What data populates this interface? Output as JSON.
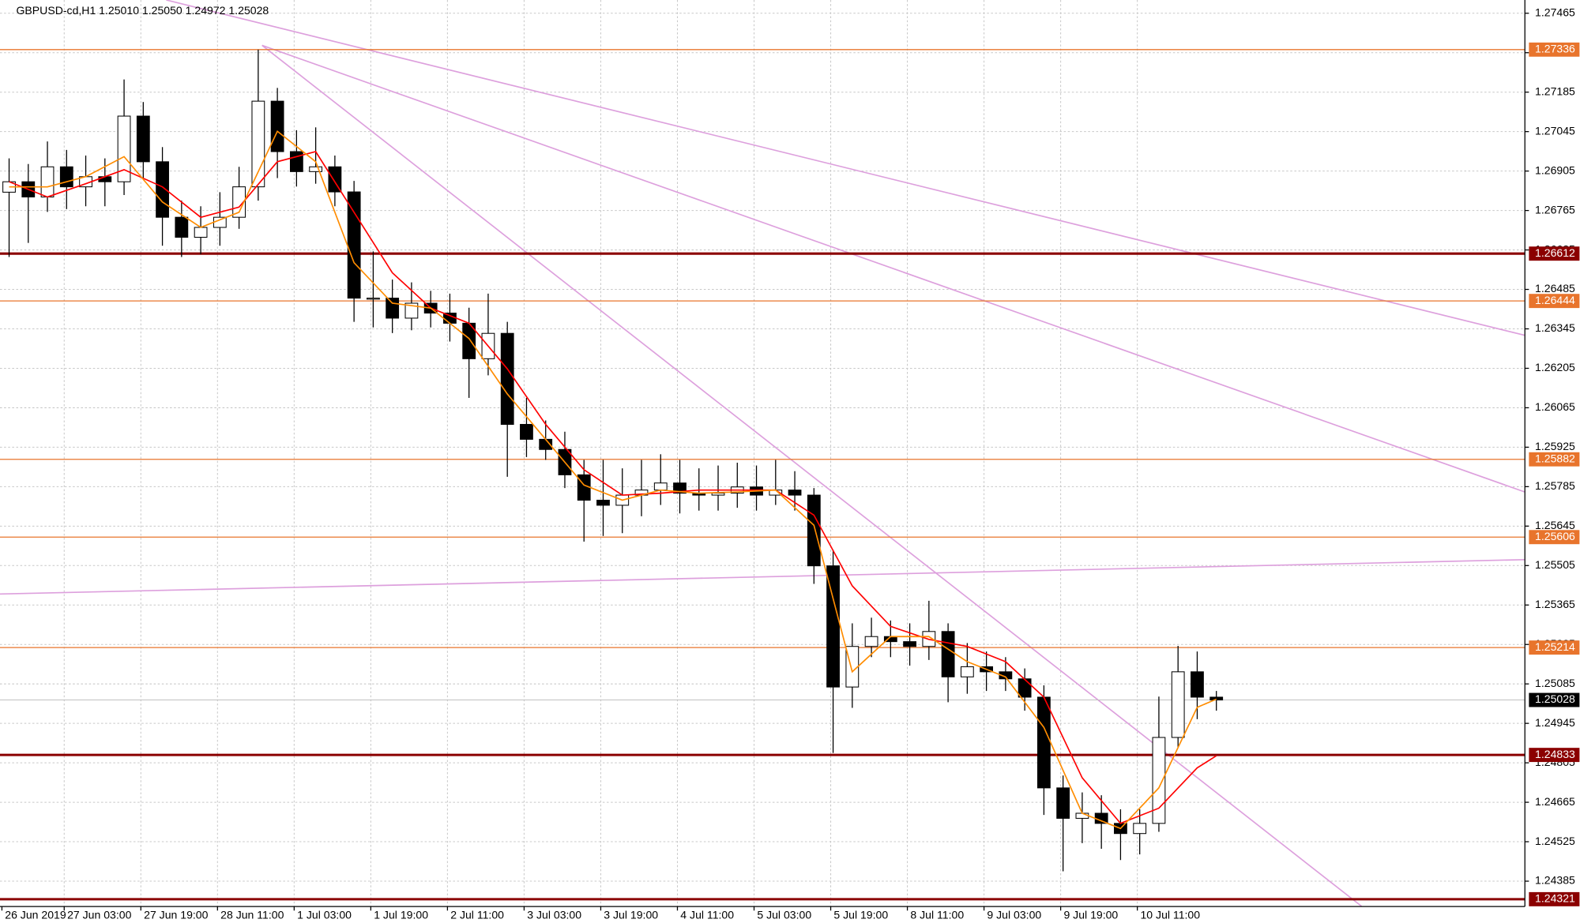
{
  "chart_data": {
    "type": "candlestick",
    "title": "GBPUSD-cd,H1  1.25010 1.25050 1.24972 1.25028",
    "x": [
      1.5,
      5.5,
      9.5,
      13.5,
      17.5,
      21.5,
      25.5,
      29.5,
      33.5,
      37.5,
      41.5,
      45.5,
      49.5,
      53.5,
      57.5,
      61.5,
      65.5,
      69.5,
      73.5,
      77.5,
      81.5,
      85.5,
      89.5,
      93.5,
      97.5,
      101.5,
      105.5,
      109.5,
      113.5,
      117.5,
      121.5,
      125.5,
      129.5,
      133.5,
      137.5,
      141.5,
      145.5,
      149.5,
      153.5,
      157.5,
      161.5,
      165.5,
      169.5,
      173.5,
      177.5,
      181.5,
      185.5,
      189.5,
      193.5,
      197.5,
      201.5,
      205.5,
      209.5,
      213.5,
      217.5,
      221.5,
      225.5,
      229.5,
      233.5,
      237.5,
      241.5,
      245.5,
      249.5,
      253.5
    ],
    "open": [
      1.2683,
      1.26867,
      1.26813,
      1.2692,
      1.26849,
      1.26885,
      1.26867,
      1.271,
      1.26938,
      1.26741,
      1.2667,
      1.26705,
      1.26741,
      1.26849,
      1.27153,
      1.26974,
      1.26903,
      1.2692,
      1.26831,
      1.26454,
      1.26454,
      1.26383,
      1.26436,
      1.26401,
      1.26365,
      1.26239,
      1.26329,
      1.26006,
      1.25953,
      1.25917,
      1.25827,
      1.25737,
      1.25719,
      1.25755,
      1.25773,
      1.25798,
      1.25762,
      1.25755,
      1.25762,
      1.25784,
      1.25755,
      1.25773,
      1.25755,
      1.25504,
      1.25074,
      1.25218,
      1.25253,
      1.25235,
      1.25218,
      1.25271,
      1.2511,
      1.25146,
      1.25128,
      1.25103,
      1.25038,
      1.24716,
      1.24608,
      1.24626,
      1.2459,
      1.24554,
      1.2459,
      1.24895,
      1.25128,
      1.25038
    ],
    "high": [
      1.2695,
      1.2693,
      1.2701,
      1.2698,
      1.2696,
      1.2695,
      1.2723,
      1.2715,
      1.2699,
      1.268,
      1.2678,
      1.2683,
      1.2692,
      1.27336,
      1.272,
      1.2705,
      1.2706,
      1.2696,
      1.2687,
      1.2662,
      1.2652,
      1.2651,
      1.2648,
      1.2647,
      1.2642,
      1.2647,
      1.2637,
      1.261,
      1.2602,
      1.2598,
      1.2588,
      1.2588,
      1.2585,
      1.2588,
      1.259,
      1.2588,
      1.2585,
      1.2586,
      1.2587,
      1.2586,
      1.2588,
      1.2584,
      1.2578,
      1.2556,
      1.253,
      1.2532,
      1.2531,
      1.253,
      1.2538,
      1.253,
      1.2523,
      1.252,
      1.2518,
      1.2514,
      1.2508,
      1.2476,
      1.247,
      1.2469,
      1.2464,
      1.2464,
      1.2504,
      1.2522,
      1.252,
      1.2506
    ],
    "low": [
      1.266,
      1.2665,
      1.2676,
      1.2677,
      1.2678,
      1.2678,
      1.2682,
      1.2688,
      1.2664,
      1.266,
      1.2661,
      1.2664,
      1.267,
      1.268,
      1.2688,
      1.2685,
      1.2686,
      1.2678,
      1.2637,
      1.2635,
      1.2633,
      1.2634,
      1.2635,
      1.263,
      1.261,
      1.2618,
      1.2582,
      1.2589,
      1.2588,
      1.2578,
      1.2559,
      1.2561,
      1.2562,
      1.2568,
      1.2572,
      1.2569,
      1.257,
      1.257,
      1.2571,
      1.257,
      1.2572,
      1.257,
      1.2544,
      1.2484,
      1.25,
      1.2518,
      1.2518,
      1.2515,
      1.2517,
      1.2502,
      1.2505,
      1.2506,
      1.2506,
      1.2499,
      1.2462,
      1.2442,
      1.2452,
      1.245,
      1.2446,
      1.2448,
      1.2456,
      1.2486,
      1.2496,
      1.2499
    ],
    "close": [
      1.26867,
      1.26813,
      1.2692,
      1.26849,
      1.26885,
      1.26867,
      1.271,
      1.26938,
      1.26741,
      1.2667,
      1.26705,
      1.26741,
      1.26849,
      1.27153,
      1.26974,
      1.26903,
      1.2692,
      1.26831,
      1.26454,
      1.26454,
      1.26383,
      1.26436,
      1.26401,
      1.26365,
      1.26239,
      1.26329,
      1.26006,
      1.25953,
      1.25917,
      1.25827,
      1.25737,
      1.25719,
      1.25755,
      1.25773,
      1.25798,
      1.25762,
      1.25755,
      1.25762,
      1.25784,
      1.25755,
      1.25773,
      1.25755,
      1.25504,
      1.25074,
      1.25218,
      1.25253,
      1.25235,
      1.25218,
      1.25271,
      1.2511,
      1.25146,
      1.25128,
      1.25103,
      1.25038,
      1.24716,
      1.24608,
      1.24626,
      1.2459,
      1.24554,
      1.2459,
      1.24895,
      1.25128,
      1.25038,
      1.25028
    ],
    "moving_averages": [
      {
        "color": "#ff0000",
        "x": [
          1.5,
          9.5,
          17.5,
          25.5,
          33.5,
          41.5,
          49.5,
          57.5,
          65.5,
          73.5,
          81.5,
          89.5,
          97.5,
          105.5,
          113.5,
          121.5,
          129.5,
          137.5,
          145.5,
          153.5,
          161.5,
          169.5,
          177.5,
          185.5,
          193.5,
          201.5,
          209.5,
          217.5,
          225.5,
          233.5,
          241.5,
          249.5,
          253.5
        ],
        "values": [
          1.26867,
          1.26813,
          1.2686,
          1.2691,
          1.26849,
          1.26741,
          1.26777,
          1.26938,
          1.26974,
          1.26759,
          1.26544,
          1.26419,
          1.26365,
          1.26203,
          1.26006,
          1.25845,
          1.25755,
          1.25762,
          1.25773,
          1.25773,
          1.25773,
          1.25684,
          1.25433,
          1.25289,
          1.25243,
          1.25218,
          1.25164,
          1.25038,
          1.24752,
          1.2459,
          1.24644,
          1.24787,
          1.2483
        ]
      },
      {
        "color": "#ff8c00",
        "x": [
          1.5,
          9.5,
          17.5,
          25.5,
          33.5,
          41.5,
          49.5,
          57.5,
          65.5,
          73.5,
          81.5,
          89.5,
          97.5,
          105.5,
          113.5,
          121.5,
          129.5,
          137.5,
          145.5,
          153.5,
          161.5,
          169.5,
          177.5,
          185.5,
          193.5,
          201.5,
          209.5,
          217.5,
          225.5,
          233.5,
          241.5,
          249.5,
          253.5
        ],
        "values": [
          1.26849,
          1.26849,
          1.26885,
          1.26956,
          1.26795,
          1.26705,
          1.26759,
          1.27046,
          1.26938,
          1.2658,
          1.26436,
          1.26419,
          1.26311,
          1.26114,
          1.25953,
          1.25791,
          1.25737,
          1.25773,
          1.25762,
          1.25766,
          1.25773,
          1.25648,
          1.25128,
          1.25253,
          1.25253,
          1.25164,
          1.2511,
          1.24931,
          1.24626,
          1.24572,
          1.24716,
          1.25002,
          1.25031
        ]
      }
    ],
    "trendlines": [
      {
        "color": "#dda0dd",
        "x": [
          34.3,
          317.9
        ],
        "values": [
          1.27512,
          1.26322
        ]
      },
      {
        "color": "#dda0dd",
        "x": [
          54.3,
          317.9
        ],
        "values": [
          1.27351,
          1.25766
        ]
      },
      {
        "color": "#dda0dd",
        "x": [
          54.3,
          283.8
        ],
        "values": [
          1.27351,
          1.24296
        ]
      },
      {
        "color": "#dda0dd",
        "x": [
          -0.4,
          317.9
        ],
        "values": [
          1.25404,
          1.25526
        ]
      }
    ],
    "levels": [
      {
        "value": 1.27336,
        "color": "#e8742c"
      },
      {
        "value": 1.26612,
        "color": "#8b0000"
      },
      {
        "value": 1.26444,
        "color": "#e8742c"
      },
      {
        "value": 1.25882,
        "color": "#e8742c"
      },
      {
        "value": 1.25606,
        "color": "#e8742c"
      },
      {
        "value": 1.25214,
        "color": "#e8742c"
      },
      {
        "value": 1.24833,
        "color": "#8b0000"
      },
      {
        "value": 1.24321,
        "color": "#8b0000"
      }
    ],
    "current_price": 1.25028,
    "xlim": [
      -0.4,
      317.9
    ],
    "ylim": [
      1.24295,
      1.27512
    ],
    "xticks": [
      {
        "value": 0,
        "label": "26 Jun 2019"
      },
      {
        "value": 13,
        "label": "27 Jun 03:00"
      },
      {
        "value": 29,
        "label": "27 Jun 19:00"
      },
      {
        "value": 45,
        "label": "28 Jun 11:00"
      },
      {
        "value": 61,
        "label": "1 Jul 03:00"
      },
      {
        "value": 77,
        "label": "1 Jul 19:00"
      },
      {
        "value": 93,
        "label": "2 Jul 11:00"
      },
      {
        "value": 109,
        "label": "3 Jul 03:00"
      },
      {
        "value": 125,
        "label": "3 Jul 19:00"
      },
      {
        "value": 141,
        "label": "4 Jul 11:00"
      },
      {
        "value": 157,
        "label": "5 Jul 03:00"
      },
      {
        "value": 173,
        "label": "5 Jul 19:00"
      },
      {
        "value": 189,
        "label": "8 Jul 11:00"
      },
      {
        "value": 205,
        "label": "9 Jul 03:00"
      },
      {
        "value": 221,
        "label": "9 Jul 19:00"
      },
      {
        "value": 237,
        "label": "10 Jul 11:00"
      }
    ],
    "yticks": [
      1.27465,
      1.27325,
      1.27185,
      1.27045,
      1.26905,
      1.26765,
      1.26625,
      1.26485,
      1.26345,
      1.26205,
      1.26065,
      1.25925,
      1.25785,
      1.25645,
      1.25505,
      1.25365,
      1.25225,
      1.25085,
      1.24945,
      1.24805,
      1.24665,
      1.24525,
      1.24385
    ],
    "grid": true
  }
}
